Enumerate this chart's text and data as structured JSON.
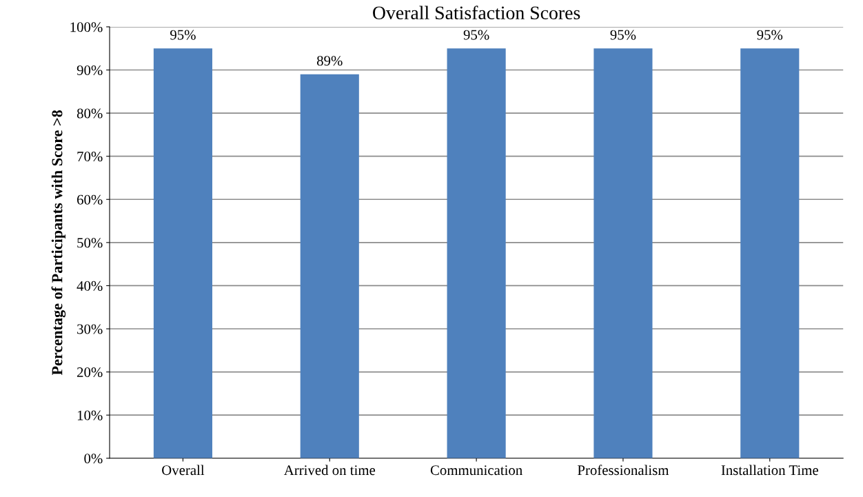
{
  "chart_data": {
    "type": "bar",
    "title": "Overall Satisfaction Scores",
    "ylabel": "Percentage of Participants with Score >8",
    "categories": [
      "Overall",
      "Arrived on time",
      "Communication",
      "Professionalism",
      "Installation Time"
    ],
    "values": [
      95,
      89,
      95,
      95,
      95
    ],
    "color": "#4f81bd",
    "value_labels": [
      "95%",
      "89%",
      "95%",
      "95%",
      "95%"
    ],
    "ylim": [
      0,
      100
    ],
    "yticks": [
      {
        "value": 0,
        "label": "0%"
      },
      {
        "value": 10,
        "label": "10%"
      },
      {
        "value": 20,
        "label": "20%"
      },
      {
        "value": 30,
        "label": "30%"
      },
      {
        "value": 40,
        "label": "40%"
      },
      {
        "value": 50,
        "label": "50%"
      },
      {
        "value": 60,
        "label": "60%"
      },
      {
        "value": 70,
        "label": "70%"
      },
      {
        "value": 80,
        "label": "80%"
      },
      {
        "value": 90,
        "label": "90%"
      },
      {
        "value": 100,
        "label": "100%"
      }
    ],
    "grid": "y",
    "legend": false
  }
}
